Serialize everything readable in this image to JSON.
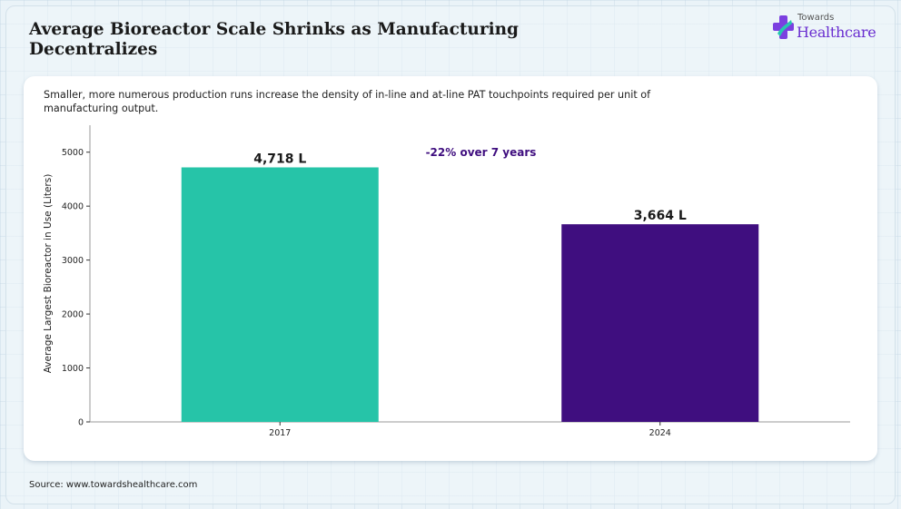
{
  "header": {
    "title": "Average Bioreactor Scale Shrinks as Manufacturing Decentralizes",
    "subtitle": "Smaller, more numerous production runs increase the density of in-line and at-line PAT touchpoints required per unit of manufacturing output."
  },
  "logo": {
    "top_text": "Towards",
    "main_text": "Healthcare",
    "icon": "medical-cross-icon"
  },
  "footer": {
    "source": "Source: www.towardshealthcare.com"
  },
  "colors": {
    "bar_2017": "#26c4a8",
    "bar_2024": "#3f0e7f",
    "annotation": "#3f0e7f",
    "axis": "#999999"
  },
  "chart_data": {
    "type": "bar",
    "categories": [
      "2017",
      "2024"
    ],
    "values": [
      4718,
      3664
    ],
    "data_labels": [
      "4,718 L",
      "3,664 L"
    ],
    "ylabel": "Average Largest Bioreactor in Use (Liters)",
    "xlabel": "",
    "ylim": [
      0,
      5500
    ],
    "yticks": [
      0,
      1000,
      2000,
      3000,
      4000,
      5000
    ],
    "annotation": "-22% over 7 years",
    "grid": false
  }
}
